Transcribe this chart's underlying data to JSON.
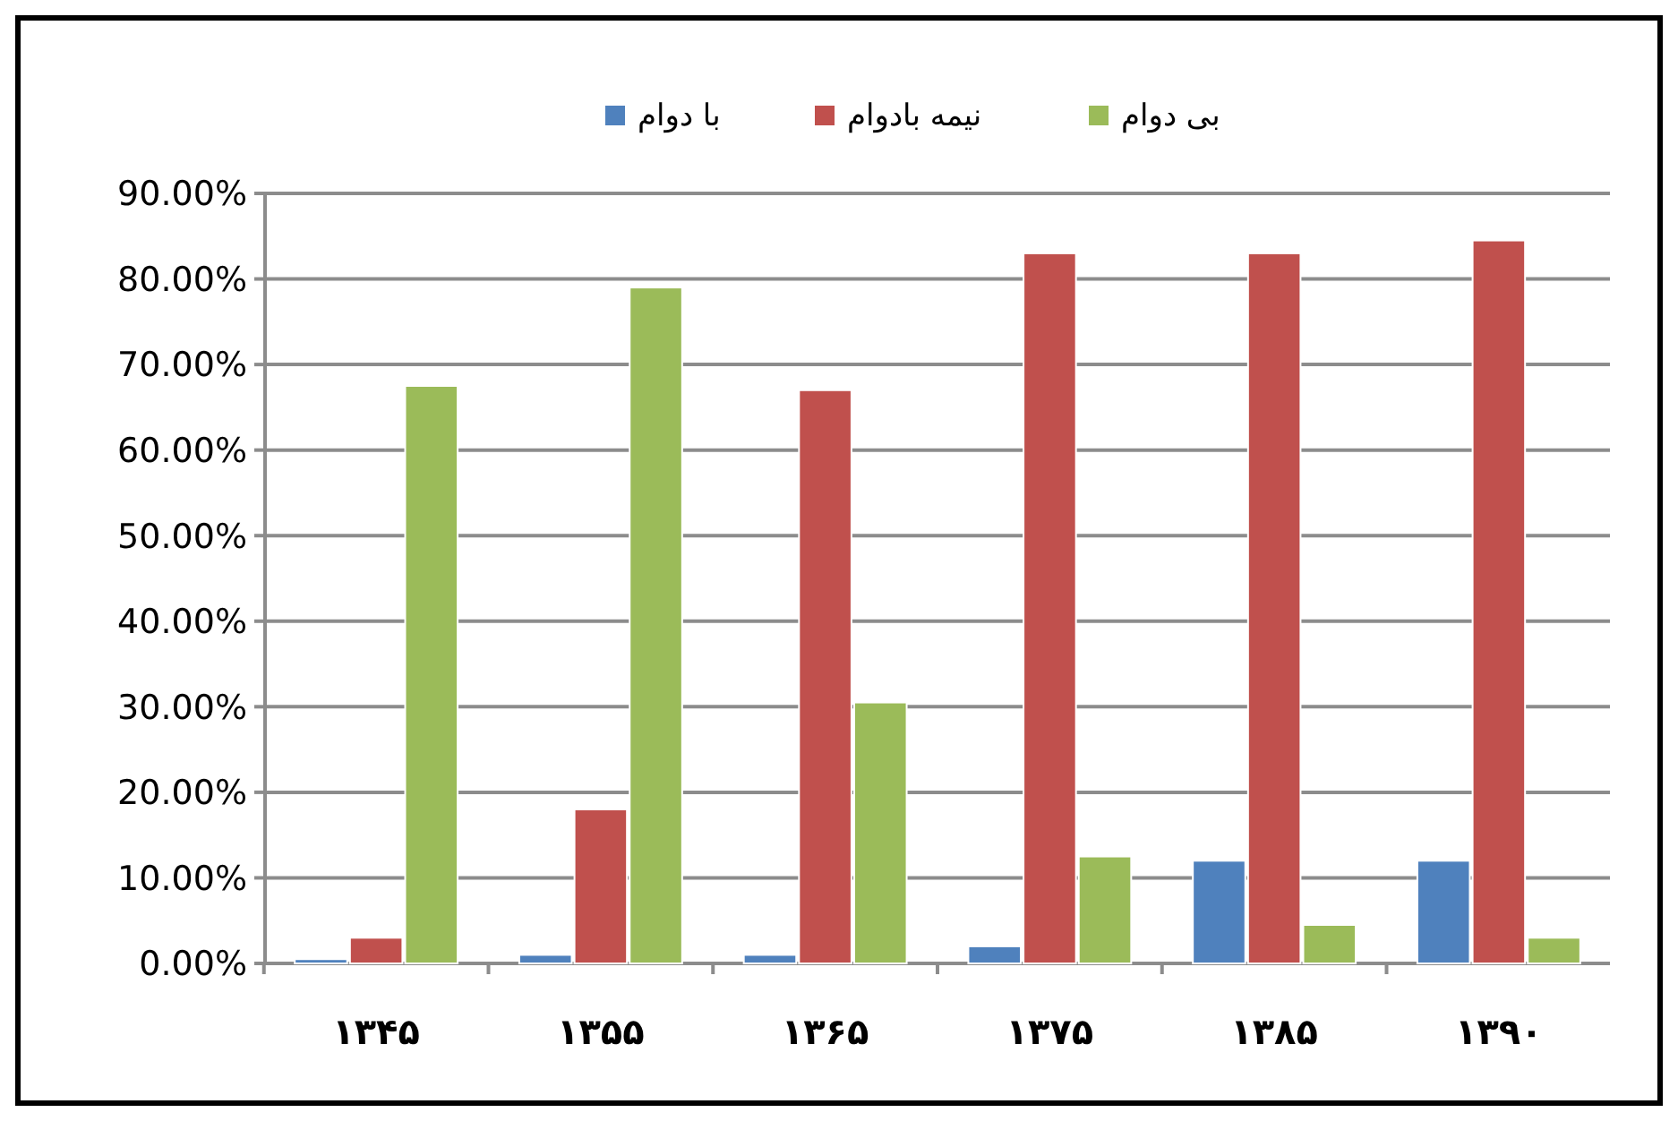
{
  "chart_data": {
    "type": "bar",
    "categories": [
      "۱۳۴۵",
      "۱۳۵۵",
      "۱۳۶۵",
      "۱۳۷۵",
      "۱۳۸۵",
      "۱۳۹۰"
    ],
    "series": [
      {
        "name": "با دوام",
        "color": "#4f81bd",
        "values": [
          0.5,
          1,
          1,
          2,
          12,
          12
        ]
      },
      {
        "name": "نیمه بادوام",
        "color": "#c0504d",
        "values": [
          3,
          18,
          67,
          83,
          83,
          84.5
        ]
      },
      {
        "name": "بی دوام",
        "color": "#9bbb59",
        "values": [
          67.5,
          79,
          30.5,
          12.5,
          4.5,
          3
        ]
      }
    ],
    "ylim": [
      0,
      90
    ],
    "yticks": [
      {
        "value": 0,
        "label": "0.00%"
      },
      {
        "value": 10,
        "label": "10.00%"
      },
      {
        "value": 20,
        "label": "20.00%"
      },
      {
        "value": 30,
        "label": "30.00%"
      },
      {
        "value": 40,
        "label": "40.00%"
      },
      {
        "value": 50,
        "label": "50.00%"
      },
      {
        "value": 60,
        "label": "60.00%"
      },
      {
        "value": 70,
        "label": "70.00%"
      },
      {
        "value": 80,
        "label": "80.00%"
      },
      {
        "value": 90,
        "label": "90.00%"
      }
    ],
    "grid": "y",
    "legend": "top"
  }
}
